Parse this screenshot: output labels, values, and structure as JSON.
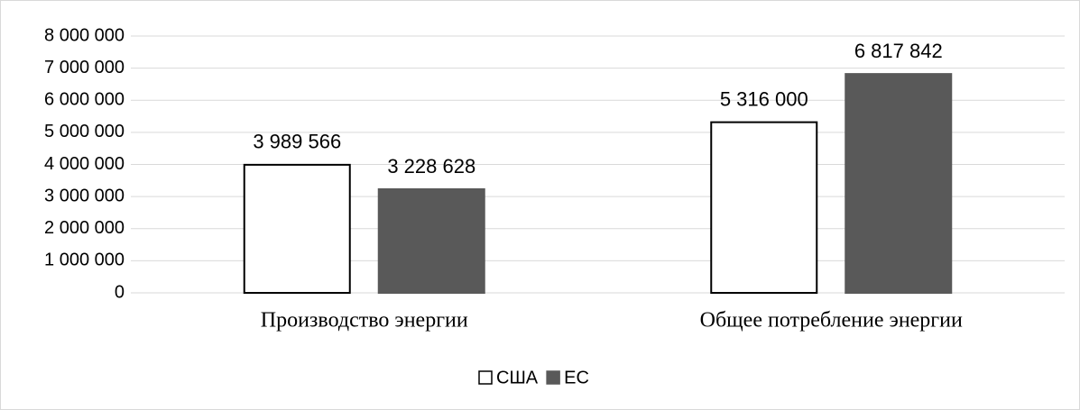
{
  "chart_data": {
    "type": "bar",
    "categories": [
      "Производство энергии",
      "Общее потребление энергии"
    ],
    "series": [
      {
        "name": "США",
        "color": "#ffffff",
        "values": [
          3989566,
          5316000
        ],
        "value_labels": [
          "3 989 566",
          "5 316 000"
        ]
      },
      {
        "name": "ЕС",
        "color": "#595959",
        "values": [
          3228628,
          6817842
        ],
        "value_labels": [
          "3 228 628",
          "6 817 842"
        ]
      }
    ],
    "ylim": [
      0,
      8000000
    ],
    "yticks": [
      0,
      {
        "value": 1000000,
        "label": "1 000 000"
      },
      {
        "value": 2000000,
        "label": "2 000 000"
      },
      {
        "value": 3000000,
        "label": "3 000 000"
      },
      {
        "value": 4000000,
        "label": "4 000 000"
      },
      {
        "value": 5000000,
        "label": "5 000 000"
      },
      {
        "value": 6000000,
        "label": "6 000 000"
      },
      {
        "value": 7000000,
        "label": "7 000 000"
      },
      {
        "value": 8000000,
        "label": "8 000 000"
      }
    ],
    "grid": true,
    "legend": "bottom"
  }
}
